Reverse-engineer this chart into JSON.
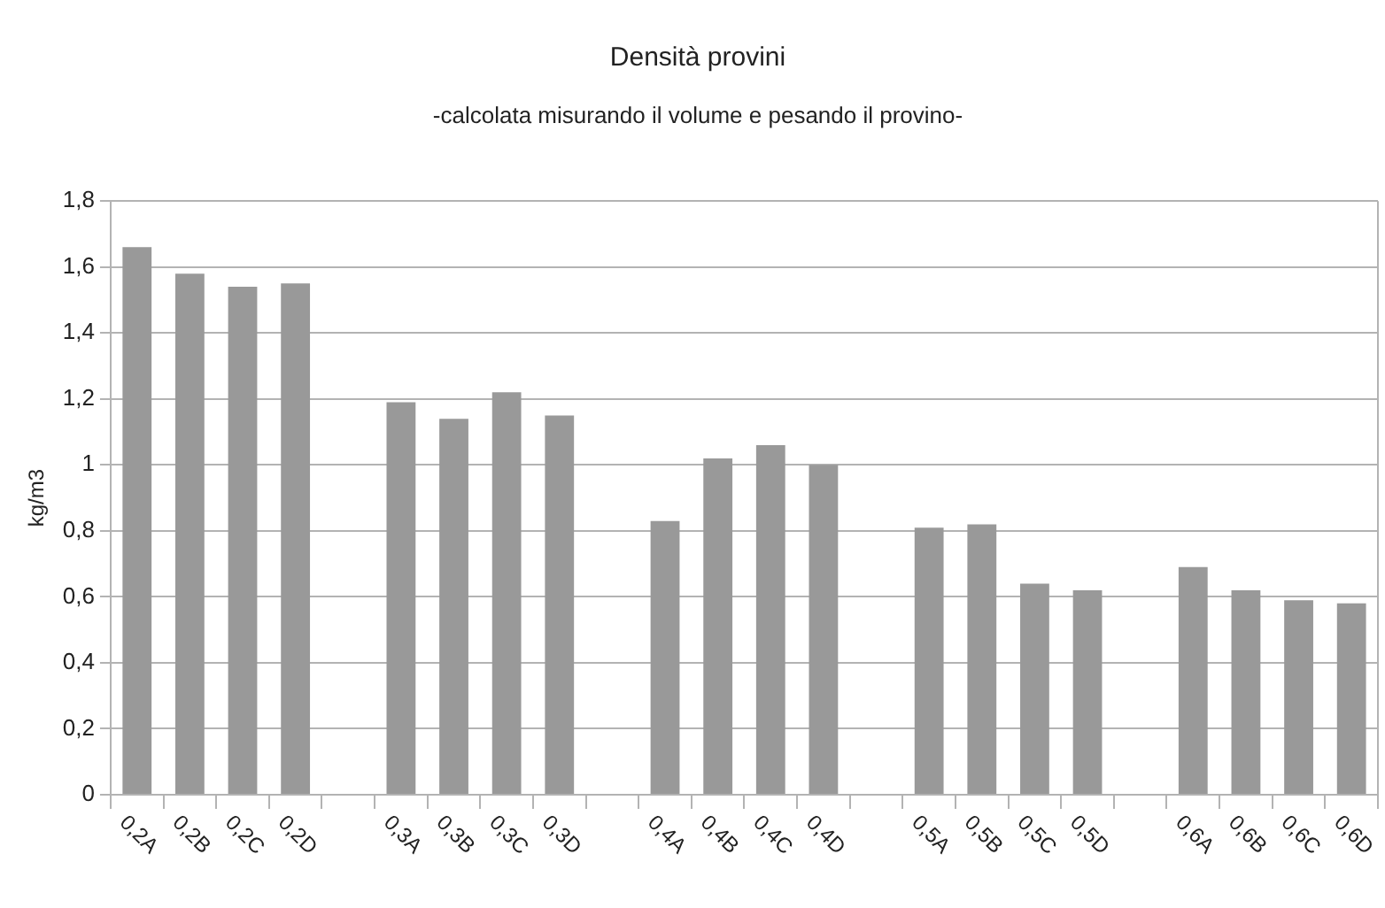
{
  "chart_data": {
    "type": "bar",
    "title": "Densità provini",
    "subtitle": "-calcolata misurando il volume e pesando il provino-",
    "ylabel": "kg/m3",
    "categories": [
      "0,2A",
      "0,2B",
      "0,2C",
      "0,2D",
      null,
      "0,3A",
      "0,3B",
      "0,3C",
      "0,3D",
      null,
      "0,4A",
      "0,4B",
      "0,4C",
      "0,4D",
      null,
      "0,5A",
      "0,5B",
      "0,5C",
      "0,5D",
      null,
      "0,6A",
      "0,6B",
      "0,6C",
      "0,6D"
    ],
    "values": [
      1.66,
      1.58,
      1.54,
      1.55,
      null,
      1.19,
      1.14,
      1.22,
      1.15,
      null,
      0.83,
      1.02,
      1.06,
      1.0,
      null,
      0.81,
      0.82,
      0.64,
      0.62,
      null,
      0.69,
      0.62,
      0.59,
      0.58
    ],
    "color": "#999999",
    "ylim": [
      0,
      1.8
    ],
    "yticks": [
      0,
      {
        "value": 0.2,
        "label": "0,2"
      },
      {
        "value": 0.4,
        "label": "0,4"
      },
      {
        "value": 0.6,
        "label": "0,6"
      },
      {
        "value": 0.8,
        "label": "0,8"
      },
      1,
      {
        "value": 1.2,
        "label": "1,2"
      },
      {
        "value": 1.4,
        "label": "1,4"
      },
      {
        "value": 1.6,
        "label": "1,6"
      },
      {
        "value": 1.8,
        "label": "1,8"
      }
    ],
    "grid": "y",
    "legend": false
  }
}
